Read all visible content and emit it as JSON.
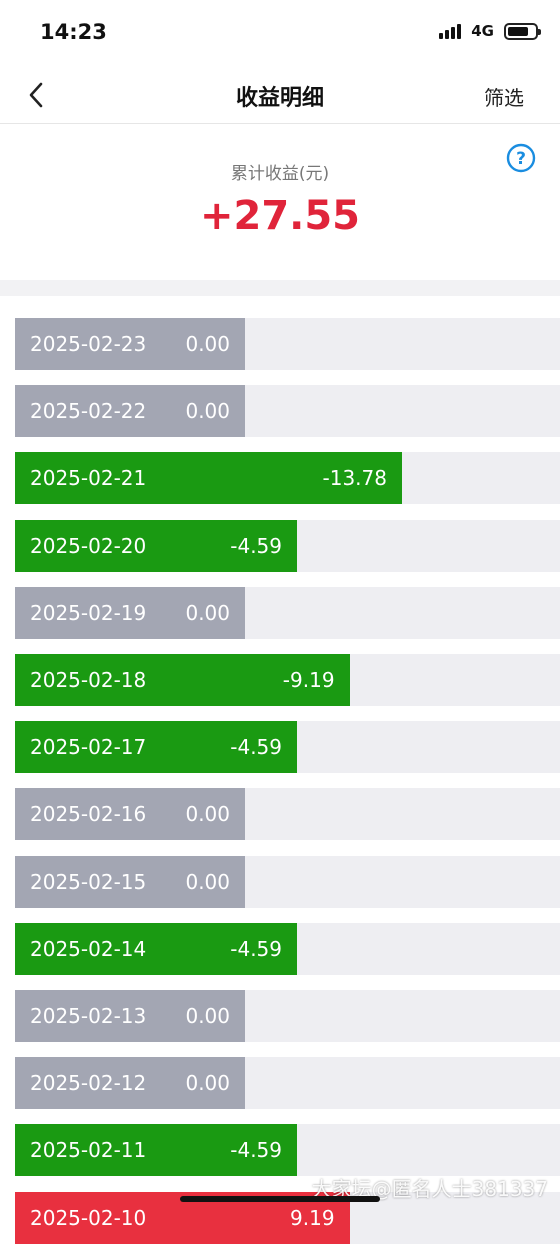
{
  "status_bar": {
    "time": "14:23",
    "network": "4G"
  },
  "nav": {
    "title": "收益明细",
    "filter_label": "筛选"
  },
  "summary": {
    "label": "累计收益(元)",
    "value": "+27.55"
  },
  "colors": {
    "zero": "#a3a6b3",
    "negative": "#1a9a12",
    "positive": "#e8303f",
    "total": "#e0243a"
  },
  "records": [
    {
      "date": "2025-02-23",
      "value": "0.00",
      "kind": "zero",
      "amount": 0.0
    },
    {
      "date": "2025-02-22",
      "value": "0.00",
      "kind": "zero",
      "amount": 0.0
    },
    {
      "date": "2025-02-21",
      "value": "-13.78",
      "kind": "neg",
      "amount": -13.78
    },
    {
      "date": "2025-02-20",
      "value": "-4.59",
      "kind": "neg",
      "amount": -4.59
    },
    {
      "date": "2025-02-19",
      "value": "0.00",
      "kind": "zero",
      "amount": 0.0
    },
    {
      "date": "2025-02-18",
      "value": "-9.19",
      "kind": "neg",
      "amount": -9.19
    },
    {
      "date": "2025-02-17",
      "value": "-4.59",
      "kind": "neg",
      "amount": -4.59
    },
    {
      "date": "2025-02-16",
      "value": "0.00",
      "kind": "zero",
      "amount": 0.0
    },
    {
      "date": "2025-02-15",
      "value": "0.00",
      "kind": "zero",
      "amount": 0.0
    },
    {
      "date": "2025-02-14",
      "value": "-4.59",
      "kind": "neg",
      "amount": -4.59
    },
    {
      "date": "2025-02-13",
      "value": "0.00",
      "kind": "zero",
      "amount": 0.0
    },
    {
      "date": "2025-02-12",
      "value": "0.00",
      "kind": "zero",
      "amount": 0.0
    },
    {
      "date": "2025-02-11",
      "value": "-4.59",
      "kind": "neg",
      "amount": -4.59
    },
    {
      "date": "2025-02-10",
      "value": "9.19",
      "kind": "pos",
      "amount": 9.19
    }
  ],
  "watermark": "大家坛@匿名人士381337"
}
